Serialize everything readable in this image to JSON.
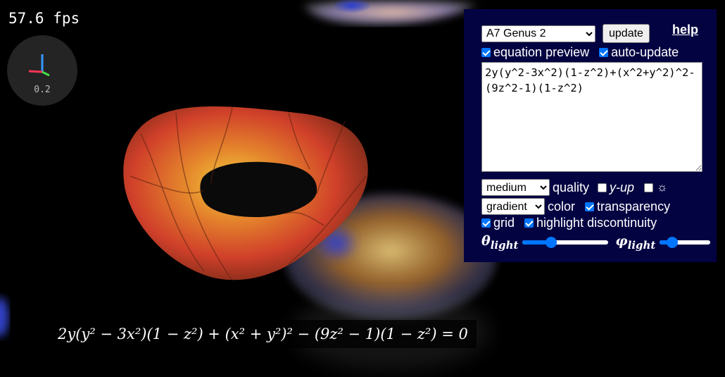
{
  "fps": {
    "text": "57.6 fps"
  },
  "axes_widget": {
    "scale": "0.2",
    "colors": {
      "x": "#ff3355",
      "y": "#44dd44",
      "z": "#3399ff"
    }
  },
  "equation_caption": {
    "text": "2y(y² − 3x²)(1 − z²) + (x² + y²)² − (9z² − 1)(1 − z²) = 0"
  },
  "panel": {
    "background": "#030342",
    "preset_select": {
      "value": "A7 Genus 2"
    },
    "update_button": {
      "label": "update"
    },
    "help_link": {
      "label": "help"
    },
    "equation_preview": {
      "label": "equation preview",
      "checked": true
    },
    "auto_update": {
      "label": "auto-update",
      "checked": true
    },
    "equation_input": {
      "value": "2y(y^2-3x^2)(1-z^2)+(x^2+y^2)^2-(9z^2-1)(1-z^2)"
    },
    "quality_select": {
      "value": "medium"
    },
    "quality_label": "quality",
    "y_up": {
      "label": "y-up",
      "checked": false
    },
    "light_toggle": {
      "icon": "sun-icon",
      "checked": false
    },
    "color_select": {
      "value": "gradient"
    },
    "color_label": "color",
    "transparency": {
      "label": "transparency",
      "checked": true
    },
    "grid": {
      "label": "grid",
      "checked": true
    },
    "highlight_discontinuity": {
      "label": "highlight discontinuity",
      "checked": true
    },
    "theta_light": {
      "symbol": "θ",
      "sub": "light",
      "value": 0.33
    },
    "phi_light": {
      "symbol": "φ",
      "sub": "light",
      "value": 0.25
    }
  }
}
